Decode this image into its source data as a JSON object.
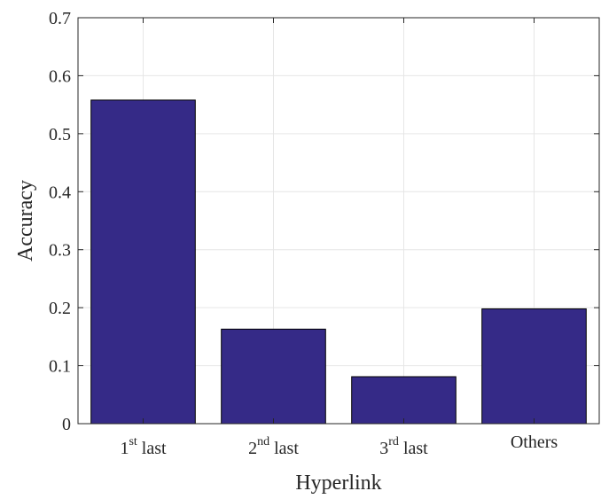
{
  "chart_data": {
    "type": "bar",
    "categories": [
      {
        "main": "1",
        "sup": "st",
        "tail": " last"
      },
      {
        "main": "2",
        "sup": "nd",
        "tail": " last"
      },
      {
        "main": "3",
        "sup": "rd",
        "tail": " last"
      },
      {
        "main": "Others",
        "sup": "",
        "tail": ""
      }
    ],
    "values": [
      0.558,
      0.163,
      0.081,
      0.198
    ],
    "xlabel": "Hyperlink",
    "ylabel": "Accuracy",
    "ylim": [
      0,
      0.7
    ],
    "yticks": [
      "0",
      "0.1",
      "0.2",
      "0.3",
      "0.4",
      "0.5",
      "0.6",
      "0.7"
    ],
    "grid": true,
    "bar_color": "#352a87"
  }
}
